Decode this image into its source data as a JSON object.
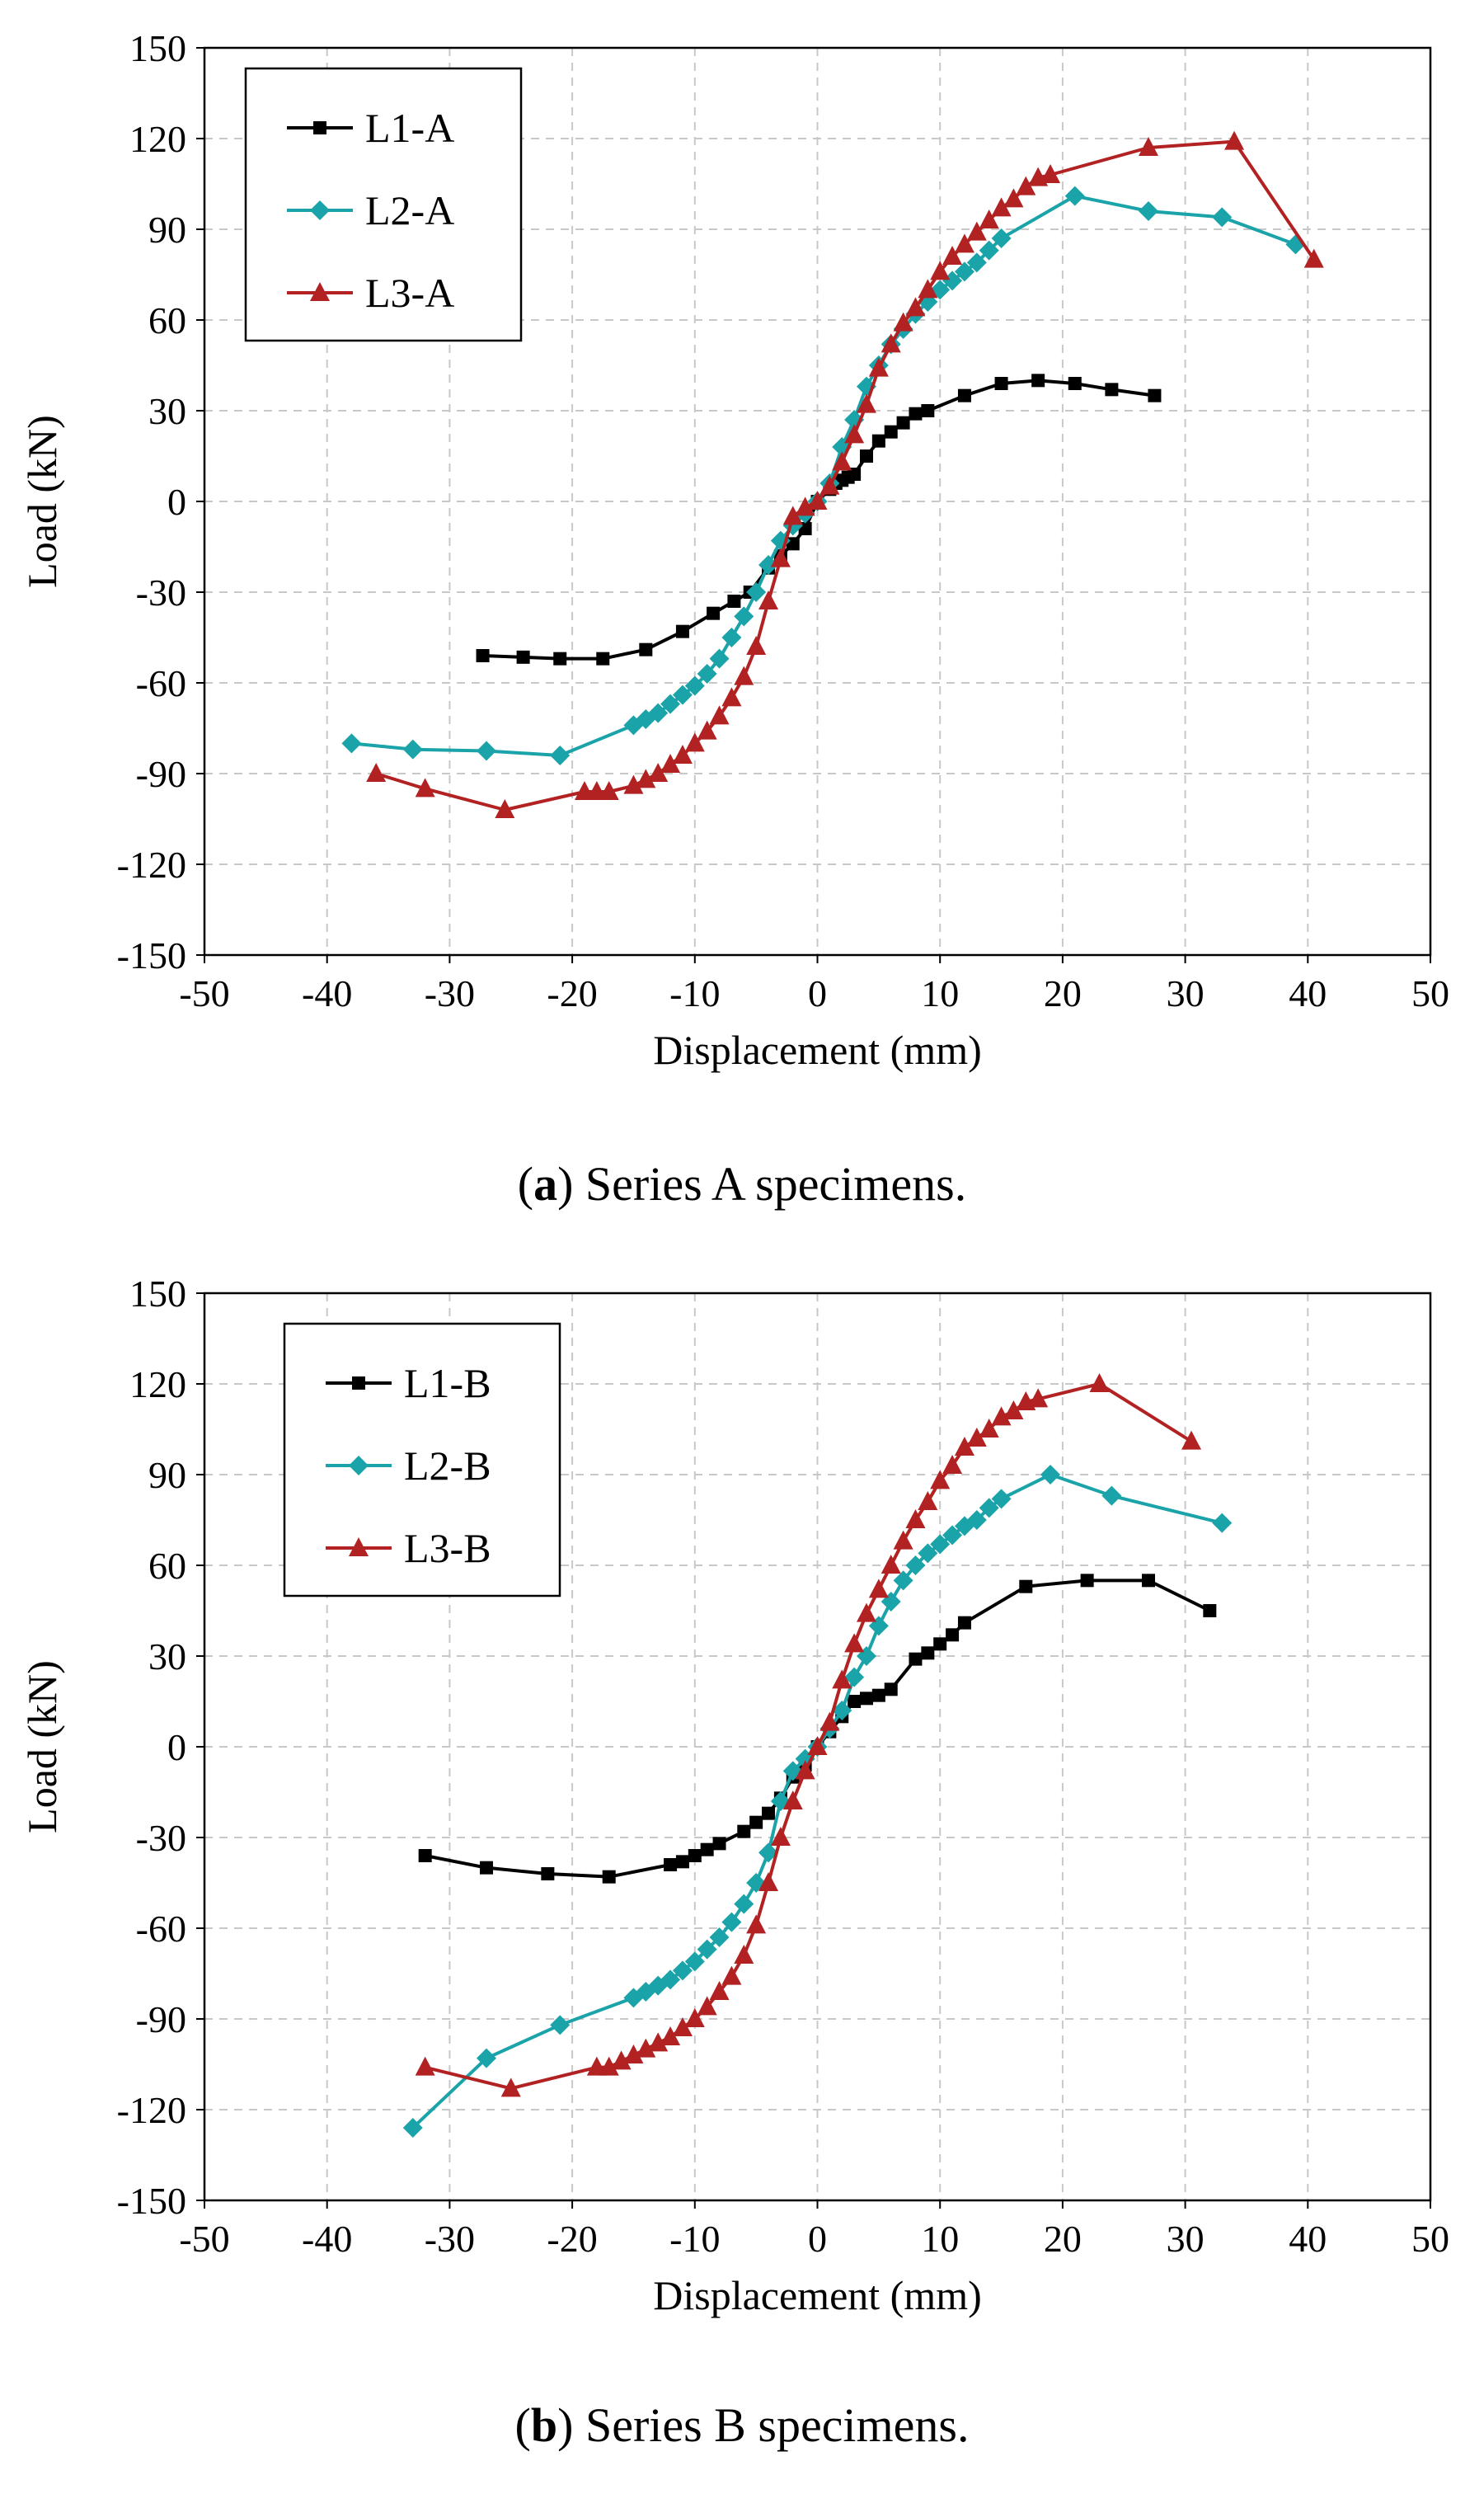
{
  "colors": {
    "L1": "#000000",
    "L2": "#1aa3a8",
    "L3": "#b22222",
    "grid": "#c8c8c8"
  },
  "chart_data": [
    {
      "id": "a",
      "type": "line",
      "title": "",
      "caption": {
        "label": "a",
        "text": " Series A specimens."
      },
      "xlabel": "Displacement (mm)",
      "ylabel": "Load (kN)",
      "xlim": [
        -50,
        50
      ],
      "ylim": [
        -150,
        150
      ],
      "xticks": [
        "-50",
        "-40",
        "-30",
        "-20",
        "-10",
        "0",
        "10",
        "20",
        "30",
        "40",
        "50"
      ],
      "yticks": [
        "150",
        "120",
        "90",
        "60",
        "30",
        "0",
        "-30",
        "-60",
        "-90",
        "-120",
        "-150"
      ],
      "grid": true,
      "legend_position": "top-left",
      "series": [
        {
          "name": "L1-A",
          "marker": "square",
          "color_key": "L1",
          "x": [
            -27.3,
            -24,
            -21,
            -17.5,
            -14,
            -11,
            -8.5,
            -6.8,
            -5.5,
            -4,
            -3,
            -2,
            -1,
            0,
            1,
            1.5,
            2,
            2.5,
            3,
            4,
            5,
            6,
            7,
            8,
            9,
            12,
            15,
            18,
            21,
            24,
            27.5
          ],
          "y": [
            -51,
            -51.5,
            -52,
            -52,
            -49,
            -43,
            -37,
            -33,
            -30,
            -22,
            -18,
            -14,
            -9,
            0,
            4,
            6,
            7,
            8,
            9,
            15,
            20,
            23,
            26,
            29,
            30,
            35,
            39,
            40,
            39,
            37,
            35
          ]
        },
        {
          "name": "L2-A",
          "marker": "diamond",
          "color_key": "L2",
          "x": [
            -38,
            -33,
            -27,
            -21,
            -15,
            -14,
            -13,
            -12,
            -11,
            -10,
            -9,
            -8,
            -7,
            -6,
            -5,
            -4,
            -3,
            -2,
            -1,
            0,
            1,
            2,
            3,
            4,
            5,
            6,
            7,
            8,
            9,
            10,
            11,
            12,
            13,
            14,
            15,
            21,
            27,
            33,
            39
          ],
          "y": [
            -80,
            -82,
            -82.5,
            -84,
            -74,
            -72,
            -70,
            -67,
            -64,
            -61,
            -57,
            -52,
            -45,
            -38,
            -30,
            -21,
            -13,
            -8,
            -4,
            0,
            6,
            18,
            27,
            38,
            45,
            52,
            57,
            62,
            66,
            70,
            73,
            76,
            79,
            83,
            87,
            101,
            96,
            94,
            85
          ]
        },
        {
          "name": "L3-A",
          "marker": "triangle",
          "color_key": "L3",
          "x": [
            -36,
            -32,
            -25.5,
            -19,
            -18,
            -17,
            -15,
            -14,
            -13,
            -12,
            -11,
            -10,
            -9,
            -8,
            -7,
            -6,
            -5,
            -4,
            -3,
            -2,
            -1,
            0,
            1,
            2,
            3,
            4,
            5,
            6,
            7,
            8,
            9,
            10,
            11,
            12,
            13,
            14,
            15,
            16,
            17,
            18,
            19,
            27,
            34,
            40.5
          ],
          "y": [
            -90,
            -95,
            -102,
            -96,
            -96,
            -96,
            -94,
            -92,
            -90,
            -87,
            -84,
            -80,
            -76,
            -71,
            -65,
            -58,
            -48,
            -33,
            -19,
            -5,
            -2,
            0,
            5,
            13,
            22,
            32,
            44,
            52,
            59,
            64,
            70,
            76,
            81,
            85,
            89,
            93,
            97,
            100,
            104,
            107,
            108,
            117,
            119,
            80
          ]
        }
      ]
    },
    {
      "id": "b",
      "type": "line",
      "title": "",
      "caption": {
        "label": "b",
        "text": " Series B specimens."
      },
      "xlabel": "Displacement (mm)",
      "ylabel": "Load (kN)",
      "xlim": [
        -50,
        50
      ],
      "ylim": [
        -150,
        150
      ],
      "xticks": [
        "-50",
        "-40",
        "-30",
        "-20",
        "-10",
        "0",
        "10",
        "20",
        "30",
        "40",
        "50"
      ],
      "yticks": [
        "150",
        "120",
        "90",
        "60",
        "30",
        "0",
        "-30",
        "-60",
        "-90",
        "-120",
        "-150"
      ],
      "grid": true,
      "legend_position": "top-left",
      "series": [
        {
          "name": "L1-B",
          "marker": "square",
          "color_key": "L1",
          "x": [
            -32,
            -27,
            -22,
            -17,
            -12,
            -11,
            -10,
            -9,
            -8,
            -6,
            -5,
            -4,
            -3,
            -2,
            -1,
            0,
            1,
            2,
            3,
            4,
            5,
            6,
            8,
            9,
            10,
            11,
            12,
            17,
            22,
            27,
            32
          ],
          "y": [
            -36,
            -40,
            -42,
            -43,
            -39,
            -38,
            -36,
            -34,
            -32,
            -28,
            -25,
            -22,
            -17,
            -10,
            -6,
            0,
            5,
            10,
            15,
            16,
            17,
            19,
            29,
            31,
            34,
            37,
            41,
            53,
            55,
            55,
            45
          ]
        },
        {
          "name": "L2-B",
          "marker": "diamond",
          "color_key": "L2",
          "x": [
            -33,
            -27,
            -21,
            -15,
            -14,
            -13,
            -12,
            -11,
            -10,
            -9,
            -8,
            -7,
            -6,
            -5,
            -4,
            -3,
            -2,
            -1,
            0,
            1,
            2,
            3,
            4,
            5,
            6,
            7,
            8,
            9,
            10,
            11,
            12,
            13,
            14,
            15,
            19,
            24,
            33
          ],
          "y": [
            -126,
            -103,
            -92,
            -83,
            -81,
            -79,
            -77,
            -74,
            -71,
            -67,
            -63,
            -58,
            -52,
            -45,
            -35,
            -18,
            -8,
            -4,
            0,
            6,
            12,
            23,
            30,
            40,
            48,
            55,
            60,
            64,
            67,
            70,
            73,
            75,
            79,
            82,
            90,
            83,
            74
          ]
        },
        {
          "name": "L3-B",
          "marker": "triangle",
          "color_key": "L3",
          "x": [
            -32,
            -25,
            -18,
            -17,
            -16,
            -15,
            -14,
            -13,
            -12,
            -11,
            -10,
            -9,
            -8,
            -7,
            -6,
            -5,
            -4,
            -3,
            -2,
            -1,
            0,
            1,
            2,
            3,
            4,
            5,
            6,
            7,
            8,
            9,
            10,
            11,
            12,
            13,
            14,
            15,
            16,
            17,
            18,
            23,
            30.5
          ],
          "y": [
            -106,
            -113,
            -106,
            -106,
            -104,
            -102,
            -100,
            -98,
            -96,
            -93,
            -90,
            -86,
            -81,
            -76,
            -69,
            -59,
            -45,
            -30,
            -18,
            -8,
            0,
            8,
            22,
            34,
            44,
            52,
            60,
            68,
            75,
            81,
            88,
            93,
            99,
            102,
            105,
            109,
            111,
            114,
            115,
            120,
            101
          ]
        }
      ]
    }
  ]
}
